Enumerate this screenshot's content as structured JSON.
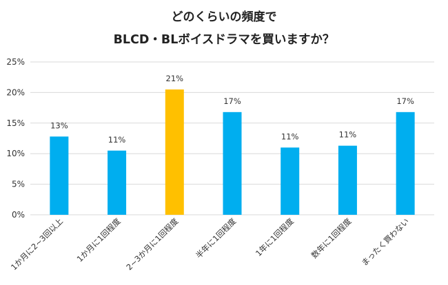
{
  "chart_data": {
    "type": "bar",
    "title": [
      "どのくらいの頻度で",
      "BLCD・BLボイスドラマを買いますか？"
    ],
    "categories": [
      "1か月に2~3回以上",
      "1か月に1回程度",
      "2~3か月に1回程度",
      "半年に1回程度",
      "1年に1回程度",
      "数年に1回程度",
      "まったく買わない"
    ],
    "values": [
      12.8,
      10.5,
      20.5,
      16.8,
      11.0,
      11.3,
      16.8
    ],
    "data_labels": [
      "13%",
      "11%",
      "21%",
      "17%",
      "11%",
      "11%",
      "17%"
    ],
    "highlight_index": 2,
    "colors": {
      "bar": "#00AEEF",
      "highlight": "#FFC000",
      "grid": "#d9d9d9"
    },
    "ylim": [
      0,
      25
    ],
    "yticks": [
      0,
      5,
      10,
      15,
      20,
      25
    ],
    "ytick_labels": [
      "0%",
      "5%",
      "10%",
      "15%",
      "20%",
      "25%"
    ],
    "xlabel": "",
    "ylabel": "",
    "grid": true,
    "legend": "none"
  }
}
